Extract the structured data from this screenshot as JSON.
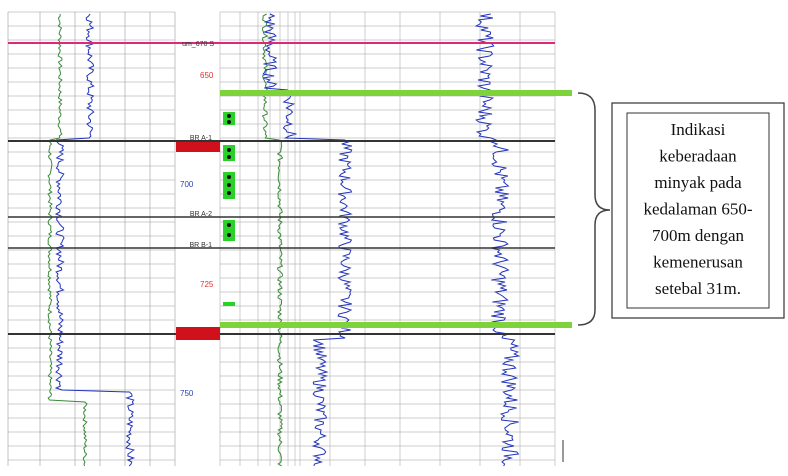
{
  "markers": [
    {
      "label": "um_670 S"
    },
    {
      "label": "BR A-1"
    },
    {
      "label": "BR A-2"
    },
    {
      "label": "BR B-1"
    }
  ],
  "depth_labels": [
    "650",
    "700",
    "725",
    "750"
  ],
  "callout": {
    "lines": [
      "Indikasi",
      "keberadaan",
      "minyak pada",
      "kedalaman 650-",
      "700m dengan",
      "kemenerusan",
      "setebal 31m."
    ]
  }
}
